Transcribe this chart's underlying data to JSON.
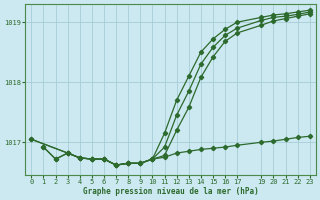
{
  "background_color": "#cce8f0",
  "grid_color": "#a8cdd8",
  "line_color": "#2d6a2d",
  "xlabel": "Graphe pression niveau de la mer (hPa)",
  "xlim": [
    -0.5,
    23.5
  ],
  "ylim": [
    1016.45,
    1019.3
  ],
  "yticks": [
    1017,
    1018,
    1019
  ],
  "xticks": [
    0,
    1,
    2,
    3,
    4,
    5,
    6,
    7,
    8,
    9,
    10,
    11,
    12,
    13,
    14,
    15,
    16,
    17,
    19,
    20,
    21,
    22,
    23
  ],
  "series": [
    {
      "x": [
        0,
        3,
        4,
        5,
        6,
        7,
        8,
        9,
        10,
        11,
        12,
        13,
        14,
        15,
        16,
        17,
        19,
        20,
        21,
        22,
        23
      ],
      "y": [
        1017.05,
        1016.82,
        1016.74,
        1016.72,
        1016.72,
        1016.62,
        1016.65,
        1016.65,
        1016.72,
        1017.15,
        1017.7,
        1018.1,
        1018.5,
        1018.72,
        1018.88,
        1019.0,
        1019.08,
        1019.12,
        1019.14,
        1019.17,
        1019.2
      ]
    },
    {
      "x": [
        0,
        3,
        4,
        5,
        6,
        7,
        8,
        9,
        10,
        11,
        12,
        13,
        14,
        15,
        16,
        17,
        19,
        20,
        21,
        22,
        23
      ],
      "y": [
        1017.05,
        1016.82,
        1016.74,
        1016.72,
        1016.72,
        1016.62,
        1016.65,
        1016.65,
        1016.72,
        1016.92,
        1017.45,
        1017.85,
        1018.3,
        1018.58,
        1018.78,
        1018.9,
        1019.03,
        1019.08,
        1019.1,
        1019.13,
        1019.17
      ]
    },
    {
      "x": [
        1,
        2,
        3,
        4,
        5,
        6,
        7,
        8,
        9,
        10,
        11,
        12,
        13,
        14,
        15,
        16,
        17,
        19,
        20,
        21,
        22,
        23
      ],
      "y": [
        1016.92,
        1016.72,
        1016.82,
        1016.74,
        1016.72,
        1016.72,
        1016.62,
        1016.65,
        1016.65,
        1016.72,
        1016.78,
        1017.2,
        1017.58,
        1018.08,
        1018.42,
        1018.68,
        1018.82,
        1018.95,
        1019.02,
        1019.06,
        1019.1,
        1019.14
      ]
    },
    {
      "x": [
        1,
        2,
        3,
        4,
        5,
        6,
        7,
        8,
        9,
        10,
        11,
        12,
        13,
        14,
        15,
        16,
        17,
        19,
        20,
        21,
        22,
        23
      ],
      "y": [
        1016.92,
        1016.72,
        1016.82,
        1016.74,
        1016.72,
        1016.72,
        1016.62,
        1016.65,
        1016.65,
        1016.72,
        1016.75,
        1016.82,
        1016.85,
        1016.88,
        1016.9,
        1016.92,
        1016.95,
        1017.0,
        1017.02,
        1017.05,
        1017.08,
        1017.1
      ]
    }
  ]
}
